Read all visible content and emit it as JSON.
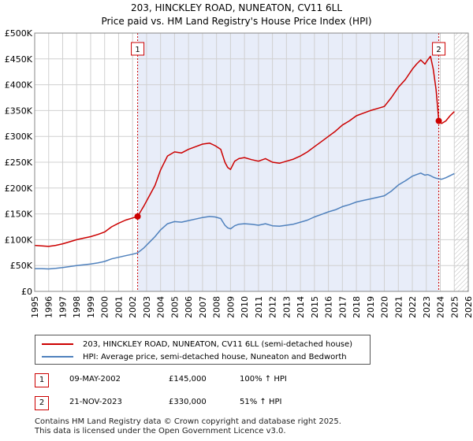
{
  "chart_data": {
    "type": "line",
    "title": "203, HINCKLEY ROAD, NUNEATON, CV11 6LL",
    "subtitle": "Price paid vs. HM Land Registry's House Price Index (HPI)",
    "xlim": [
      1995,
      2026
    ],
    "ylim": [
      0,
      500000
    ],
    "x_ticks": [
      "1995",
      "1996",
      "1997",
      "1998",
      "1999",
      "2000",
      "2001",
      "2002",
      "2003",
      "2004",
      "2005",
      "2006",
      "2007",
      "2008",
      "2009",
      "2010",
      "2011",
      "2012",
      "2013",
      "2014",
      "2015",
      "2016",
      "2017",
      "2018",
      "2019",
      "2020",
      "2021",
      "2022",
      "2023",
      "2024",
      "2025",
      "2026"
    ],
    "y_ticks": [
      {
        "value": 0,
        "label": "£0"
      },
      {
        "value": 50000,
        "label": "£50K"
      },
      {
        "value": 100000,
        "label": "£100K"
      },
      {
        "value": 150000,
        "label": "£150K"
      },
      {
        "value": 200000,
        "label": "£200K"
      },
      {
        "value": 250000,
        "label": "£250K"
      },
      {
        "value": 300000,
        "label": "£300K"
      },
      {
        "value": 350000,
        "label": "£350K"
      },
      {
        "value": 400000,
        "label": "£400K"
      },
      {
        "value": 450000,
        "label": "£450K"
      },
      {
        "value": 500000,
        "label": "£500K"
      }
    ],
    "shaded_ranges": [
      {
        "from": 2002.36,
        "to": 2023.89,
        "note": "ownership period"
      },
      {
        "from": 2025.0,
        "to": 2026.0,
        "note": "hatched future"
      }
    ],
    "series": [
      {
        "name": "203, HINCKLEY ROAD, NUNEATON, CV11 6LL (semi-detached house)",
        "color": "#cc0000",
        "x": [
          1995,
          1995.5,
          1996,
          1996.5,
          1997,
          1997.5,
          1998,
          1998.5,
          1999,
          1999.5,
          2000,
          2000.5,
          2001,
          2001.5,
          2002,
          2002.36,
          2002.8,
          2003.2,
          2003.6,
          2004,
          2004.5,
          2005,
          2005.5,
          2006,
          2006.5,
          2007,
          2007.5,
          2007.9,
          2008.3,
          2008.6,
          2008.8,
          2009.0,
          2009.3,
          2009.6,
          2010,
          2010.5,
          2011,
          2011.5,
          2012,
          2012.5,
          2013,
          2013.5,
          2014,
          2014.5,
          2015,
          2015.5,
          2016,
          2016.5,
          2017,
          2017.5,
          2018,
          2018.5,
          2019,
          2019.5,
          2020,
          2020.5,
          2021,
          2021.5,
          2022,
          2022.3,
          2022.6,
          2022.9,
          2023.1,
          2023.3,
          2023.5,
          2023.7,
          2023.89,
          2024.1,
          2024.4,
          2024.7,
          2025.0
        ],
        "values": [
          89000,
          88000,
          87000,
          89000,
          92000,
          96000,
          100000,
          103000,
          106000,
          110000,
          115000,
          125000,
          132000,
          138000,
          142000,
          145000,
          165000,
          185000,
          205000,
          235000,
          262000,
          270000,
          268000,
          275000,
          280000,
          285000,
          287000,
          282000,
          275000,
          250000,
          240000,
          236000,
          252000,
          257000,
          259000,
          255000,
          252000,
          257000,
          250000,
          248000,
          252000,
          256000,
          262000,
          270000,
          280000,
          290000,
          300000,
          310000,
          322000,
          330000,
          340000,
          345000,
          350000,
          354000,
          358000,
          375000,
          395000,
          410000,
          430000,
          440000,
          448000,
          440000,
          448000,
          455000,
          430000,
          390000,
          330000,
          325000,
          330000,
          340000,
          348000
        ]
      },
      {
        "name": "HPI: Average price, semi-detached house, Nuneaton and Bedworth",
        "color": "#4f81bd",
        "x": [
          1995,
          1995.5,
          1996,
          1996.5,
          1997,
          1997.5,
          1998,
          1998.5,
          1999,
          1999.5,
          2000,
          2000.5,
          2001,
          2001.5,
          2002,
          2002.36,
          2002.8,
          2003.2,
          2003.6,
          2004,
          2004.5,
          2005,
          2005.5,
          2006,
          2006.5,
          2007,
          2007.5,
          2007.9,
          2008.3,
          2008.6,
          2008.8,
          2009.0,
          2009.3,
          2009.6,
          2010,
          2010.5,
          2011,
          2011.5,
          2012,
          2012.5,
          2013,
          2013.5,
          2014,
          2014.5,
          2015,
          2015.5,
          2016,
          2016.5,
          2017,
          2017.5,
          2018,
          2018.5,
          2019,
          2019.5,
          2020,
          2020.5,
          2021,
          2021.5,
          2022,
          2022.3,
          2022.6,
          2022.9,
          2023.1,
          2023.3,
          2023.5,
          2023.7,
          2023.89,
          2024.1,
          2024.4,
          2024.7,
          2025.0
        ],
        "values": [
          44000,
          44000,
          43500,
          44500,
          46000,
          48000,
          50000,
          51500,
          53000,
          55000,
          58000,
          63000,
          66000,
          69000,
          72000,
          74500,
          84000,
          95000,
          106000,
          119000,
          131000,
          135000,
          134000,
          137000,
          140000,
          143000,
          145000,
          144000,
          141000,
          128000,
          123000,
          121000,
          127000,
          130000,
          131000,
          130000,
          128000,
          131000,
          127000,
          126000,
          128000,
          130000,
          134000,
          138000,
          144000,
          149000,
          154000,
          158000,
          164000,
          168000,
          173000,
          176000,
          179000,
          182000,
          185000,
          194000,
          206000,
          214000,
          223000,
          226000,
          229000,
          225000,
          226000,
          224000,
          221000,
          219000,
          218000,
          217000,
          220000,
          224000,
          228000
        ]
      }
    ],
    "sales": [
      {
        "id": "1",
        "x": 2002.36,
        "value": 145000
      },
      {
        "id": "2",
        "x": 2023.89,
        "value": 330000
      }
    ]
  },
  "legend": {
    "line1": "203, HINCKLEY ROAD, NUNEATON, CV11 6LL (semi-detached house)",
    "line2": "HPI: Average price, semi-detached house, Nuneaton and Bedworth"
  },
  "table": [
    {
      "id": "1",
      "date": "09-MAY-2002",
      "price": "£145,000",
      "hpi": "100% ↑ HPI"
    },
    {
      "id": "2",
      "date": "21-NOV-2023",
      "price": "£330,000",
      "hpi": "51% ↑ HPI"
    }
  ],
  "footer": {
    "line1": "Contains HM Land Registry data © Crown copyright and database right 2025.",
    "line2": "This data is licensed under the Open Government Licence v3.0."
  },
  "colors": {
    "red": "#cc0000",
    "blue": "#4f81bd",
    "shade": "#e8edf9",
    "grid": "#d0d0d0"
  }
}
